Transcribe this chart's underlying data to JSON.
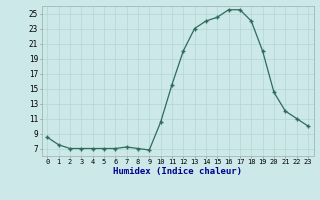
{
  "x": [
    0,
    1,
    2,
    3,
    4,
    5,
    6,
    7,
    8,
    9,
    10,
    11,
    12,
    13,
    14,
    15,
    16,
    17,
    18,
    19,
    20,
    21,
    22,
    23
  ],
  "y": [
    8.5,
    7.5,
    7.0,
    7.0,
    7.0,
    7.0,
    7.0,
    7.2,
    7.0,
    6.8,
    10.5,
    15.5,
    20.0,
    23.0,
    24.0,
    24.5,
    25.5,
    25.5,
    24.0,
    20.0,
    14.5,
    12.0,
    11.0,
    10.0
  ],
  "xlabel": "Humidex (Indice chaleur)",
  "xlim": [
    -0.5,
    23.5
  ],
  "ylim": [
    6,
    26
  ],
  "yticks": [
    7,
    9,
    11,
    13,
    15,
    17,
    19,
    21,
    23,
    25
  ],
  "xticks": [
    0,
    1,
    2,
    3,
    4,
    5,
    6,
    7,
    8,
    9,
    10,
    11,
    12,
    13,
    14,
    15,
    16,
    17,
    18,
    19,
    20,
    21,
    22,
    23
  ],
  "xtick_labels": [
    "0",
    "1",
    "2",
    "3",
    "4",
    "5",
    "6",
    "7",
    "8",
    "9",
    "10",
    "11",
    "12",
    "13",
    "14",
    "15",
    "16",
    "17",
    "18",
    "19",
    "20",
    "21",
    "22",
    "23"
  ],
  "line_color": "#2e6b5e",
  "marker": "+",
  "bg_color": "#cce8e8",
  "grid_color": "#b8d8d8",
  "xlabel_color": "#00008b"
}
